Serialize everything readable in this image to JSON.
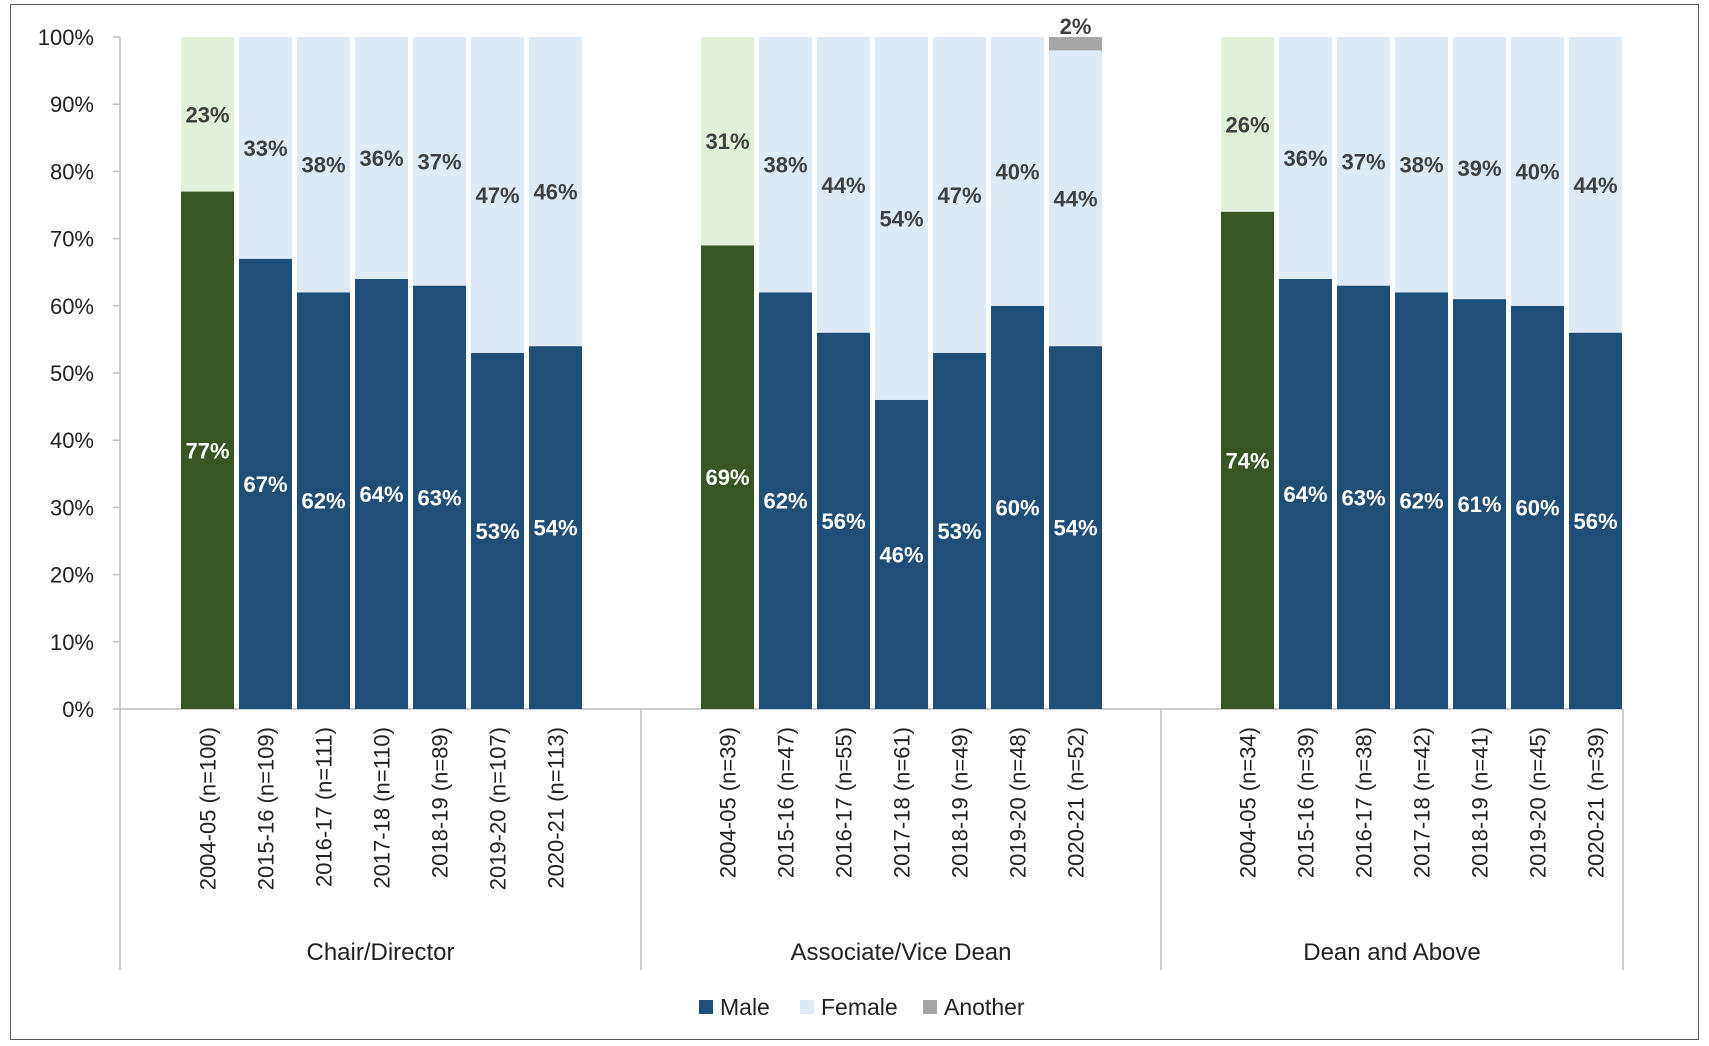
{
  "chart_data": {
    "type": "bar",
    "stacked": true,
    "ylim": [
      0,
      100
    ],
    "y_ticks": [
      "0%",
      "10%",
      "20%",
      "30%",
      "40%",
      "50%",
      "60%",
      "70%",
      "80%",
      "90%",
      "100%"
    ],
    "grid": false,
    "legend_position": "bottom",
    "colors": {
      "male": "#1f4e79",
      "female": "#deeaf6",
      "another": "#a6a6a6",
      "male_2004": "#375623",
      "female_2004": "#e2efda",
      "male_label": "#ffffff",
      "female_label": "#404040",
      "axis": "#bfbfbf"
    },
    "legend": [
      {
        "key": "male",
        "label": "Male"
      },
      {
        "key": "female",
        "label": "Female"
      },
      {
        "key": "another",
        "label": "Another"
      }
    ],
    "groups": [
      {
        "name": "Chair/Director",
        "categories": [
          "2004-05 (n=100)",
          "2015-16 (n=109)",
          "2016-17 (n=111)",
          "2017-18 (n=110)",
          "2018-19 (n=89)",
          "2019-20 (n=107)",
          "2020-21 (n=113)"
        ],
        "male": [
          77,
          67,
          62,
          64,
          63,
          53,
          54
        ],
        "female": [
          23,
          33,
          38,
          36,
          37,
          47,
          46
        ],
        "another": [
          0,
          0,
          0,
          0,
          0,
          0,
          0
        ]
      },
      {
        "name": "Associate/Vice Dean",
        "categories": [
          "2004-05 (n=39)",
          "2015-16 (n=47)",
          "2016-17 (n=55)",
          "2017-18 (n=61)",
          "2018-19 (n=49)",
          "2019-20 (n=48)",
          "2020-21 (n=52)"
        ],
        "male": [
          69,
          62,
          56,
          46,
          53,
          60,
          54
        ],
        "female": [
          31,
          38,
          44,
          54,
          47,
          40,
          44
        ],
        "another": [
          0,
          0,
          0,
          0,
          0,
          0,
          2
        ]
      },
      {
        "name": "Dean and Above",
        "categories": [
          "2004-05 (n=34)",
          "2015-16 (n=39)",
          "2016-17 (n=38)",
          "2017-18 (n=42)",
          "2018-19 (n=41)",
          "2019-20 (n=45)",
          "2020-21 (n=39)"
        ],
        "male": [
          74,
          64,
          63,
          62,
          61,
          60,
          56
        ],
        "female": [
          26,
          36,
          37,
          38,
          39,
          40,
          44
        ],
        "another": [
          0,
          0,
          0,
          0,
          0,
          0,
          0
        ]
      }
    ]
  }
}
